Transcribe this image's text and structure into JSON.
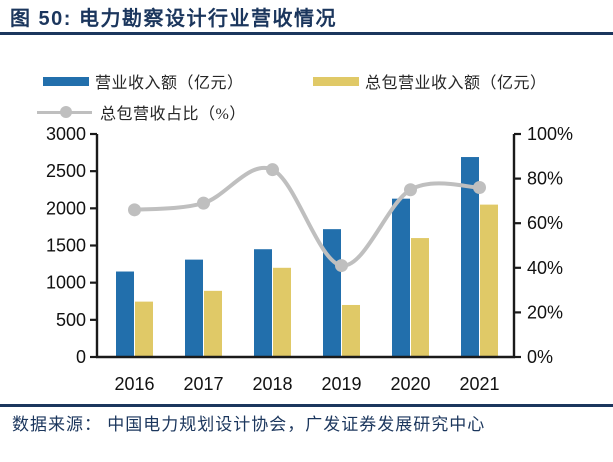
{
  "header": {
    "title": "图 50: 电力勘察设计行业营收情况"
  },
  "legend": {
    "items": [
      {
        "label": "营业收入额（亿元）",
        "marker": "bar-swatch",
        "color": "#226FAC"
      },
      {
        "label": "总包营业收入额（亿元）",
        "marker": "bar-swatch",
        "color": "#E0C967"
      },
      {
        "label": "总包营收占比（%）",
        "marker": "line-with-dot",
        "color": "#BFBFBF"
      }
    ]
  },
  "chart_data": {
    "type": "bar+line",
    "title": "电力勘察设计行业营收情况",
    "categories": [
      "2016",
      "2017",
      "2018",
      "2019",
      "2020",
      "2021"
    ],
    "series": [
      {
        "name": "营业收入额（亿元）",
        "type": "bar",
        "axis": "left",
        "color": "#226FAC",
        "values": [
          1150,
          1310,
          1450,
          1720,
          2130,
          2690
        ]
      },
      {
        "name": "总包营业收入额（亿元）",
        "type": "bar",
        "axis": "left",
        "color": "#E0C967",
        "values": [
          745,
          890,
          1200,
          700,
          1600,
          2050
        ]
      },
      {
        "name": "总包营收占比（%）",
        "type": "line",
        "axis": "right",
        "color": "#BFBFBF",
        "values": [
          66,
          69,
          84,
          41,
          75,
          76
        ]
      }
    ],
    "left_axis": {
      "min": 0,
      "max": 3000,
      "step": 500,
      "ticks": [
        "0",
        "500",
        "1000",
        "1500",
        "2000",
        "2500",
        "3000"
      ]
    },
    "right_axis": {
      "min": 0,
      "max": 100,
      "step": 20,
      "ticks": [
        "0%",
        "20%",
        "40%",
        "60%",
        "80%",
        "100%"
      ]
    },
    "grid": false,
    "legend_position": "top-left"
  },
  "footer": {
    "source": "数据来源： 中国电力规划设计协会，广发证券发展研究中心"
  },
  "colors": {
    "title": "#1B365D",
    "rule": "#1B365D",
    "bar_blue": "#226FAC",
    "bar_yellow": "#E0C967",
    "line_gray": "#BFBFBF",
    "axis": "#1A1A1A",
    "tick_text": "#111111",
    "legend_text": "#262626"
  }
}
